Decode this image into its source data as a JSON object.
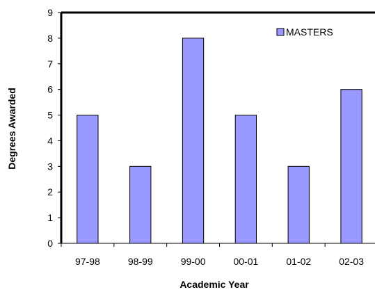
{
  "chart_data": {
    "type": "bar",
    "title": "",
    "xlabel": "Academic Year",
    "ylabel": "Degrees Awarded",
    "categories": [
      "97-98",
      "98-99",
      "99-00",
      "00-01",
      "01-02",
      "02-03"
    ],
    "series": [
      {
        "name": "MASTERS",
        "values": [
          5,
          3,
          8,
          5,
          3,
          6
        ]
      }
    ],
    "ylim": [
      0,
      9
    ],
    "yticks": [
      "0",
      "1",
      "2",
      "3",
      "4",
      "5",
      "6",
      "7",
      "8",
      "9"
    ],
    "grid": false,
    "legend_position": "top-right",
    "bar_color": "#9999FF"
  }
}
